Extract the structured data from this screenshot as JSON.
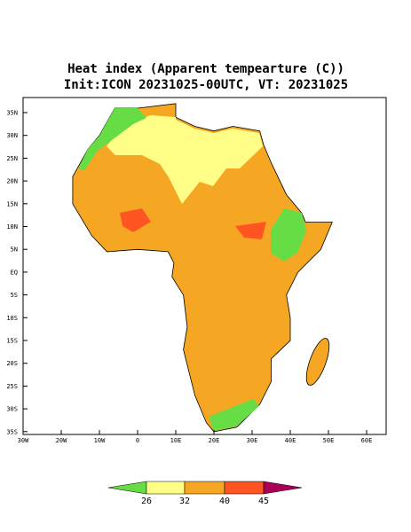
{
  "title": "Heat index (Apparent tempearture (C))",
  "subtitle": "Init:ICON 20231025-00UTC, VT: 20231025",
  "map": {
    "lat_ticks": [
      "35N",
      "30N",
      "25N",
      "20N",
      "15N",
      "10N",
      "5N",
      "EQ",
      "5S",
      "10S",
      "15S",
      "20S",
      "25S",
      "30S",
      "35S"
    ],
    "lon_ticks": [
      "30W",
      "20W",
      "10W",
      "0",
      "10E",
      "20E",
      "30E",
      "40E",
      "50E",
      "60E"
    ]
  },
  "colorbar": {
    "labels": [
      "26",
      "32",
      "40",
      "45"
    ]
  }
}
